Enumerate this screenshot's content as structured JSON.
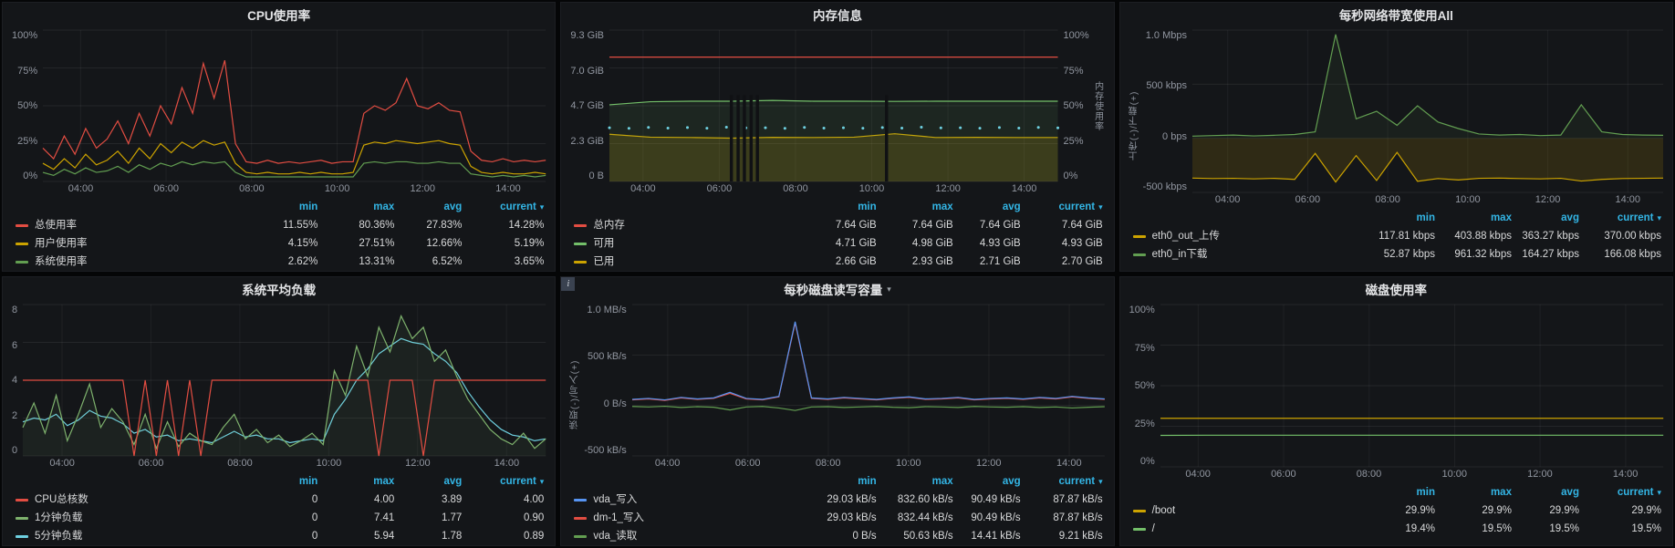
{
  "icons": {
    "caret_down": "▾",
    "info": "i"
  },
  "legend_headers": [
    "min",
    "max",
    "avg",
    "current"
  ],
  "x_ticks": [
    "04:00",
    "06:00",
    "08:00",
    "10:00",
    "12:00",
    "14:00"
  ],
  "panels": [
    {
      "title": "CPU使用率",
      "y_ticks": [
        "100%",
        "75%",
        "50%",
        "25%",
        "0%"
      ],
      "legend_rows": [
        {
          "label": "总使用率",
          "color": "#e24d42",
          "values": [
            "11.55%",
            "80.36%",
            "27.83%",
            "14.28%"
          ]
        },
        {
          "label": "用户使用率",
          "color": "#cca300",
          "values": [
            "4.15%",
            "27.51%",
            "12.66%",
            "5.19%"
          ]
        },
        {
          "label": "系统使用率",
          "color": "#629e51",
          "values": [
            "2.62%",
            "13.31%",
            "6.52%",
            "3.65%"
          ]
        }
      ],
      "chart_data": {
        "type": "line",
        "title": "CPU使用率",
        "ylabel": "percent",
        "ylim": [
          0,
          100
        ],
        "y_tick_values": [
          0,
          25,
          50,
          75,
          100
        ],
        "x_tick_labels": [
          "04:00",
          "06:00",
          "08:00",
          "10:00",
          "12:00",
          "14:00"
        ],
        "series": [
          {
            "name": "系统使用率",
            "color": "#629e51",
            "values": [
              6,
              4,
              8,
              5,
              9,
              6,
              7,
              10,
              6,
              11,
              8,
              12,
              10,
              13,
              11,
              13,
              12,
              13,
              6,
              3,
              3,
              3,
              3,
              3,
              3,
              3,
              3,
              3,
              3,
              3,
              12,
              13,
              12,
              13,
              13,
              12,
              12,
              13,
              12,
              12,
              5,
              4,
              3,
              4,
              3,
              4,
              3,
              4
            ]
          },
          {
            "name": "用户使用率",
            "color": "#cca300",
            "values": [
              12,
              8,
              15,
              9,
              18,
              11,
              14,
              20,
              12,
              22,
              15,
              25,
              19,
              26,
              22,
              27,
              24,
              26,
              12,
              6,
              5,
              6,
              5,
              5,
              6,
              5,
              6,
              5,
              5,
              6,
              24,
              26,
              25,
              27,
              26,
              25,
              26,
              27,
              25,
              24,
              10,
              6,
              5,
              6,
              5,
              5,
              6,
              5
            ]
          },
          {
            "name": "总使用率",
            "color": "#e24d42",
            "values": [
              22,
              15,
              30,
              18,
              35,
              22,
              28,
              40,
              25,
              45,
              30,
              50,
              38,
              62,
              45,
              78,
              55,
              80,
              25,
              13,
              12,
              14,
              12,
              13,
              12,
              13,
              14,
              12,
              13,
              13,
              45,
              50,
              47,
              52,
              68,
              50,
              48,
              52,
              47,
              46,
              20,
              14,
              13,
              15,
              13,
              14,
              13,
              14
            ]
          }
        ]
      }
    },
    {
      "title": "内存信息",
      "y_ticks": [
        "9.3 GiB",
        "7.0 GiB",
        "4.7 GiB",
        "2.3 GiB",
        "0 B"
      ],
      "y_ticks_right": [
        "100%",
        "75%",
        "50%",
        "25%",
        "0%"
      ],
      "axis_title_right": "内存使用率",
      "legend_rows": [
        {
          "label": "总内存",
          "color": "#e24d42",
          "values": [
            "7.64 GiB",
            "7.64 GiB",
            "7.64 GiB",
            "7.64 GiB"
          ]
        },
        {
          "label": "可用",
          "color": "#73bf69",
          "values": [
            "4.71 GiB",
            "4.98 GiB",
            "4.93 GiB",
            "4.93 GiB"
          ]
        },
        {
          "label": "已用",
          "color": "#cca300",
          "values": [
            "2.66 GiB",
            "2.93 GiB",
            "2.71 GiB",
            "2.70 GiB"
          ]
        }
      ],
      "chart_data": {
        "type": "line",
        "title": "内存信息",
        "ylabel": "GiB",
        "ylabel_right": "内存使用率 %",
        "ylim": [
          0,
          9.3
        ],
        "y_tick_values": [
          0,
          2.325,
          4.65,
          6.975,
          9.3
        ],
        "x_tick_labels": [
          "04:00",
          "06:00",
          "08:00",
          "10:00",
          "12:00",
          "14:00"
        ],
        "gap_markers": [
          0.272,
          0.287,
          0.301,
          0.316,
          0.33,
          0.618
        ],
        "gap_top": 5.3,
        "series": [
          {
            "name": "已用",
            "color": "#cca300",
            "fill": 0.18,
            "values": [
              2.9,
              2.72,
              2.7,
              2.66,
              2.71,
              2.7,
              2.72,
              2.93,
              2.7,
              2.71,
              2.7,
              2.7
            ]
          },
          {
            "name": "可用",
            "color": "#73bf69",
            "fill": 0.1,
            "values": [
              4.71,
              4.9,
              4.93,
              4.93,
              4.98,
              4.93,
              4.93,
              4.92,
              4.93,
              4.93,
              4.93,
              4.93
            ]
          },
          {
            "name": "内存使用率",
            "color": "#6ed0e0",
            "dots": true,
            "values": [
              3.3,
              3.26,
              3.32,
              3.28,
              3.31,
              3.27,
              3.33,
              3.29,
              3.3,
              3.26,
              3.32,
              3.28,
              3.3,
              3.27,
              3.31,
              3.28,
              3.33,
              3.29,
              3.3,
              3.27,
              3.31,
              3.28,
              3.32,
              3.29
            ]
          },
          {
            "name": "总内存",
            "color": "#e24d42",
            "values": [
              7.64,
              7.64,
              7.64,
              7.64,
              7.64,
              7.64,
              7.64,
              7.64,
              7.64,
              7.64,
              7.64,
              7.64
            ]
          }
        ]
      }
    },
    {
      "title": "每秒网络带宽使用All",
      "y_ticks": [
        "1.0 Mbps",
        "500 kbps",
        "0 bps",
        "-500 kbps"
      ],
      "axis_title_left": "上传(-)/下载(+)",
      "legend_rows": [
        {
          "label": "eth0_out_上传",
          "color": "#cca300",
          "values": [
            "117.81 kbps",
            "403.88 kbps",
            "363.27 kbps",
            "370.00 kbps"
          ]
        },
        {
          "label": "eth0_in下载",
          "color": "#629e51",
          "values": [
            "52.87 kbps",
            "961.32 kbps",
            "164.27 kbps",
            "166.08 kbps"
          ]
        }
      ],
      "chart_data": {
        "type": "line",
        "title": "每秒网络带宽使用All",
        "ylabel": "上传(-)/下载(+) kbps",
        "ylim": [
          -500,
          1000
        ],
        "y_tick_values": [
          -500,
          0,
          500,
          1000
        ],
        "x_tick_labels": [
          "04:00",
          "06:00",
          "08:00",
          "10:00",
          "12:00",
          "14:00"
        ],
        "series": [
          {
            "name": "eth0_out_上传",
            "color": "#cca300",
            "fill": 0.15,
            "values": [
              -368,
              -372,
              -370,
              -375,
              -370,
              -380,
              -140,
              -404,
              -160,
              -390,
              -130,
              -398,
              -372,
              -385,
              -370,
              -368,
              -372,
              -375,
              -370,
              -395,
              -380,
              -372,
              -370,
              -368
            ]
          },
          {
            "name": "eth0_in下载",
            "color": "#629e51",
            "fill": 0.08,
            "values": [
              20,
              25,
              30,
              22,
              28,
              35,
              60,
              960,
              180,
              250,
              120,
              300,
              150,
              90,
              40,
              30,
              35,
              25,
              30,
              310,
              60,
              35,
              30,
              28
            ]
          }
        ]
      }
    },
    {
      "title": "系统平均负载",
      "y_ticks": [
        "8",
        "6",
        "4",
        "2",
        "0"
      ],
      "legend_rows": [
        {
          "label": "CPU总核数",
          "color": "#e24d42",
          "values": [
            "0",
            "4.00",
            "3.89",
            "4.00"
          ]
        },
        {
          "label": "1分钟负载",
          "color": "#7eb26d",
          "values": [
            "0",
            "7.41",
            "1.77",
            "0.90"
          ]
        },
        {
          "label": "5分钟负载",
          "color": "#6ed0e0",
          "values": [
            "0",
            "5.94",
            "1.78",
            "0.89"
          ]
        }
      ],
      "chart_data": {
        "type": "line",
        "title": "系统平均负载",
        "ylabel": "load",
        "ylim": [
          0,
          8
        ],
        "y_tick_values": [
          0,
          2,
          4,
          6,
          8
        ],
        "x_tick_labels": [
          "04:00",
          "06:00",
          "08:00",
          "10:00",
          "12:00",
          "14:00"
        ],
        "series": [
          {
            "name": "5分钟负载",
            "color": "#6ed0e0",
            "values": [
              1.8,
              2.0,
              1.9,
              2.2,
              1.6,
              1.9,
              2.4,
              2.1,
              2.0,
              1.7,
              1.2,
              1.4,
              1.0,
              1.1,
              0.8,
              0.9,
              0.8,
              0.7,
              1.0,
              1.3,
              1.0,
              1.1,
              0.9,
              0.9,
              0.7,
              0.8,
              0.9,
              0.8,
              2.2,
              3.0,
              4.0,
              4.6,
              5.4,
              5.8,
              6.2,
              6.0,
              5.9,
              5.4,
              5.0,
              4.4,
              3.4,
              2.6,
              1.9,
              1.4,
              1.1,
              1.0,
              0.8,
              0.9
            ]
          },
          {
            "name": "1分钟负载",
            "color": "#7eb26d",
            "fill": 0.08,
            "values": [
              1.5,
              2.8,
              1.2,
              3.2,
              0.8,
              2.2,
              3.8,
              1.5,
              2.5,
              1.8,
              0.6,
              2.2,
              0.4,
              1.8,
              0.5,
              1.2,
              0.8,
              0.6,
              1.5,
              2.2,
              0.9,
              1.4,
              0.7,
              1.1,
              0.5,
              0.8,
              1.2,
              0.6,
              4.5,
              3.2,
              5.8,
              4.2,
              6.8,
              5.5,
              7.4,
              6.2,
              6.8,
              5.0,
              5.6,
              4.2,
              3.0,
              2.2,
              1.4,
              0.9,
              0.6,
              1.2,
              0.4,
              0.9
            ]
          },
          {
            "name": "CPU总核数",
            "color": "#e24d42",
            "values": [
              4,
              4,
              4,
              4,
              4,
              4,
              4,
              4,
              4,
              4,
              0,
              4,
              0,
              4,
              0,
              4,
              0,
              4,
              4,
              4,
              4,
              4,
              4,
              4,
              4,
              4,
              4,
              4,
              4,
              4,
              4,
              4,
              0,
              4,
              4,
              4,
              0,
              4,
              4,
              4,
              4,
              4,
              4,
              4,
              4,
              4,
              4,
              4
            ]
          }
        ]
      }
    },
    {
      "title": "每秒磁盘读写容量",
      "y_ticks": [
        "1.0 MB/s",
        "500 kB/s",
        "0 B/s",
        "-500 kB/s"
      ],
      "axis_title_left": "读取(-)/写入(+)",
      "legend_rows": [
        {
          "label": "vda_写入",
          "color": "#5794f2",
          "values": [
            "29.03 kB/s",
            "832.60 kB/s",
            "90.49 kB/s",
            "87.87 kB/s"
          ]
        },
        {
          "label": "dm-1_写入",
          "color": "#e24d42",
          "values": [
            "29.03 kB/s",
            "832.44 kB/s",
            "90.49 kB/s",
            "87.87 kB/s"
          ]
        },
        {
          "label": "vda_读取",
          "color": "#629e51",
          "values": [
            "0 B/s",
            "50.63 kB/s",
            "14.41 kB/s",
            "9.21 kB/s"
          ]
        }
      ],
      "chart_data": {
        "type": "line",
        "title": "每秒磁盘读写容量",
        "ylabel": "读取(-)/写入(+) kB/s",
        "ylim": [
          -500,
          1000
        ],
        "y_tick_values": [
          -500,
          0,
          500,
          1000
        ],
        "x_tick_labels": [
          "04:00",
          "06:00",
          "08:00",
          "10:00",
          "12:00",
          "14:00"
        ],
        "series": [
          {
            "name": "vda_读取",
            "color": "#629e51",
            "values": [
              -10,
              -15,
              -8,
              -20,
              -12,
              -18,
              -45,
              -15,
              -10,
              -25,
              -50,
              -15,
              -12,
              -20,
              -15,
              -10,
              -18,
              -22,
              -12,
              -15,
              -20,
              -10,
              -15,
              -18,
              -12,
              -20,
              -15,
              -25,
              -18,
              -12
            ]
          },
          {
            "name": "dm-1_写入",
            "color": "#e24d42",
            "values": [
              55,
              65,
              50,
              75,
              60,
              70,
              120,
              65,
              55,
              85,
              818,
              70,
              60,
              75,
              65,
              55,
              70,
              80,
              60,
              65,
              75,
              55,
              65,
              70,
              60,
              75,
              65,
              85,
              70,
              60
            ]
          },
          {
            "name": "vda_写入",
            "color": "#5794f2",
            "values": [
              60,
              70,
              55,
              80,
              65,
              75,
              130,
              70,
              60,
              90,
              830,
              75,
              65,
              80,
              70,
              60,
              75,
              85,
              65,
              70,
              80,
              60,
              70,
              75,
              65,
              80,
              70,
              90,
              75,
              65
            ]
          }
        ]
      }
    },
    {
      "title": "磁盘使用率",
      "y_ticks": [
        "100%",
        "75%",
        "50%",
        "25%",
        "0%"
      ],
      "legend_rows": [
        {
          "label": "/boot",
          "color": "#cca300",
          "values": [
            "29.9%",
            "29.9%",
            "29.9%",
            "29.9%"
          ]
        },
        {
          "label": "/",
          "color": "#73bf69",
          "values": [
            "19.4%",
            "19.5%",
            "19.5%",
            "19.5%"
          ]
        }
      ],
      "chart_data": {
        "type": "line",
        "title": "磁盘使用率",
        "ylabel": "percent",
        "ylim": [
          0,
          100
        ],
        "y_tick_values": [
          0,
          25,
          50,
          75,
          100
        ],
        "x_tick_labels": [
          "04:00",
          "06:00",
          "08:00",
          "10:00",
          "12:00",
          "14:00"
        ],
        "series": [
          {
            "name": "/",
            "color": "#73bf69",
            "values": [
              19.4,
              19.5,
              19.5,
              19.5,
              19.5,
              19.5,
              19.5,
              19.5,
              19.5,
              19.5,
              19.5,
              19.5
            ]
          },
          {
            "name": "/boot",
            "color": "#cca300",
            "values": [
              29.9,
              29.9,
              29.9,
              29.9,
              29.9,
              29.9,
              29.9,
              29.9,
              29.9,
              29.9,
              29.9,
              29.9
            ]
          }
        ]
      }
    }
  ]
}
